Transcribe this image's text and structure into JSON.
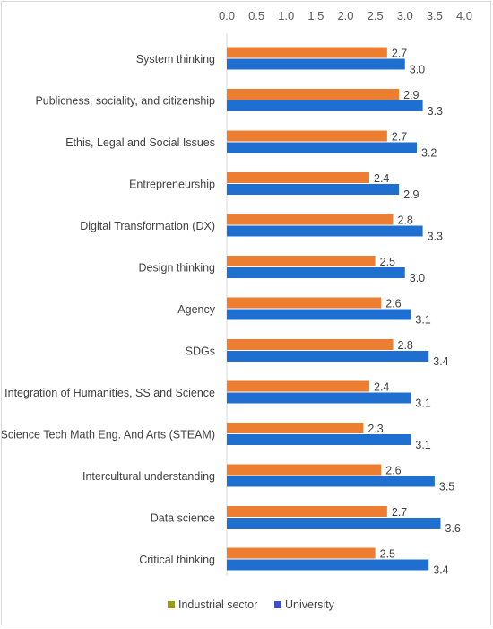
{
  "chart_data": {
    "type": "bar",
    "orientation": "horizontal",
    "title": "",
    "xlabel": "",
    "ylabel": "",
    "xlim": [
      0,
      4.0
    ],
    "ticks": [
      "0.0",
      "0.5",
      "1.0",
      "1.5",
      "2.0",
      "2.5",
      "3.0",
      "3.5",
      "4.0"
    ],
    "tick_values": [
      0,
      0.5,
      1.0,
      1.5,
      2.0,
      2.5,
      3.0,
      3.5,
      4.0
    ],
    "axis_position": "top",
    "grid": false,
    "legend_position": "bottom",
    "categories": [
      "System thinking",
      "Publicness, sociality, and citizenship",
      "Ethis, Legal and Social Issues",
      "Entrepreneurship",
      "Digital Transformation (DX)",
      "Design thinking",
      "Agency",
      "SDGs",
      "Integration of Humanities, SS and Science",
      "Science Tech Math Eng. And Arts (STEAM)",
      "Intercultural understanding",
      "Data science",
      "Critical thinking"
    ],
    "series": [
      {
        "name": "Industrial sector",
        "bar_color": "#ED7D31",
        "legend_color": "#9C9C1A",
        "values": [
          2.7,
          2.9,
          2.7,
          2.4,
          2.8,
          2.5,
          2.6,
          2.8,
          2.4,
          2.3,
          2.6,
          2.7,
          2.5
        ],
        "labels": [
          "2.7",
          "2.9",
          "2.7",
          "2.4",
          "2.8",
          "2.5",
          "2.6",
          "2.8",
          "2.4",
          "2.3",
          "2.6",
          "2.7",
          "2.5"
        ]
      },
      {
        "name": "University",
        "bar_color": "#1F6FD1",
        "legend_color": "#3F4FC4",
        "values": [
          3.0,
          3.3,
          3.2,
          2.9,
          3.3,
          3.0,
          3.1,
          3.4,
          3.1,
          3.1,
          3.5,
          3.6,
          3.4
        ],
        "labels": [
          "3.0",
          "3.3",
          "3.2",
          "2.9",
          "3.3",
          "3.0",
          "3.1",
          "3.4",
          "3.1",
          "3.1",
          "3.5",
          "3.6",
          "3.4"
        ]
      }
    ]
  }
}
